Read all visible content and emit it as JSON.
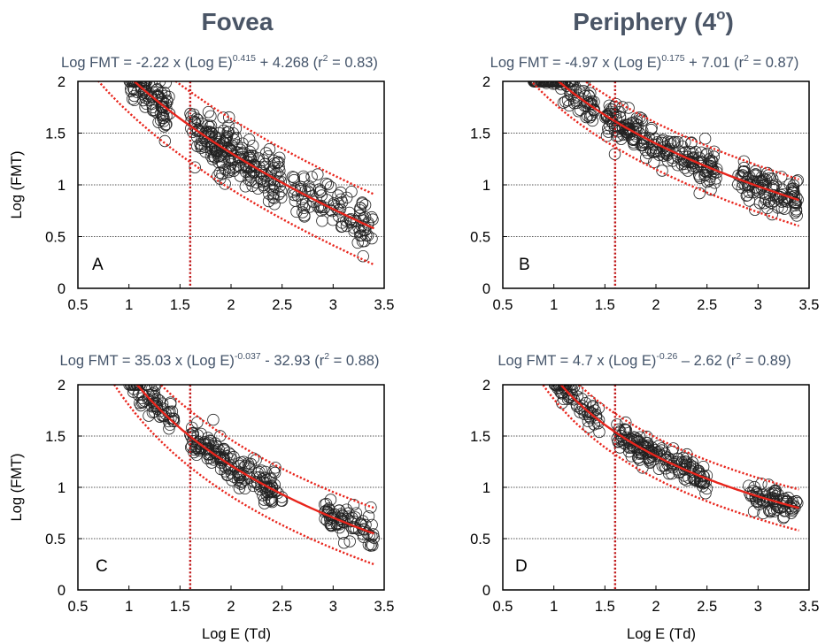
{
  "figure": {
    "column_titles": [
      "Fovea",
      "Periphery (4",
      "o",
      ")"
    ]
  },
  "chart_data": [
    {
      "panel": "A",
      "type": "scatter",
      "equation": [
        "Log FMT = -2.22 x (Log E)",
        "0.415",
        " + 4.268 (r",
        "2",
        " = 0.83)"
      ],
      "fit": {
        "a": -2.22,
        "b": 0.415,
        "c": 4.268,
        "r2": 0.83
      },
      "band": {
        "upper_offset": 0.33,
        "lower_offset": -0.35
      },
      "xlabel": "",
      "ylabel": "Log (FMT)",
      "xlim": [
        0.5,
        3.5
      ],
      "ylim": [
        0,
        2
      ],
      "xticks": [
        "0.5",
        "1",
        "1.5",
        "2",
        "2.5",
        "3",
        "3.5"
      ],
      "yticks": [
        "0",
        "0.5",
        "1",
        "1.5",
        "2"
      ],
      "y_gridlines": [
        0.5,
        1,
        1.5,
        2
      ],
      "vline_x": 1.6,
      "points": {
        "x_range": [
          0.8,
          3.4
        ],
        "y_range": [
          0.17,
          2.0
        ],
        "spread": 0.13,
        "clusters": [
          [
            1.0,
            1.4,
            95
          ],
          [
            1.6,
            2.0,
            110
          ],
          [
            2.0,
            2.5,
            110
          ],
          [
            2.6,
            3.4,
            105
          ]
        ]
      }
    },
    {
      "panel": "B",
      "type": "scatter",
      "equation": [
        "Log FMT = -4.97 x (Log E)",
        "0.175",
        " + 7.01 (r",
        "2",
        " = 0.87)"
      ],
      "fit": {
        "a": -4.97,
        "b": 0.175,
        "c": 7.01,
        "r2": 0.87
      },
      "band": {
        "upper_offset": 0.2,
        "lower_offset": -0.25
      },
      "xlabel": "",
      "ylabel": "",
      "xlim": [
        0.5,
        3.5
      ],
      "ylim": [
        0,
        2
      ],
      "xticks": [
        "0.5",
        "1",
        "1.5",
        "2",
        "2.5",
        "3",
        "3.5"
      ],
      "yticks": [
        "0",
        "0.5",
        "1",
        "1.5",
        "2"
      ],
      "y_gridlines": [
        0.5,
        1,
        1.5,
        2
      ],
      "vline_x": 1.6,
      "points": {
        "x_range": [
          0.8,
          3.4
        ],
        "y_range": [
          0.6,
          2.0
        ],
        "spread": 0.09,
        "clusters": [
          [
            0.8,
            1.4,
            110
          ],
          [
            1.5,
            2.1,
            120
          ],
          [
            2.1,
            2.6,
            90
          ],
          [
            2.8,
            3.4,
            115
          ]
        ]
      }
    },
    {
      "panel": "C",
      "type": "scatter",
      "equation": [
        "Log FMT = 35.03 x (Log E)",
        "-0.037",
        " - 32.93 (r",
        "2",
        " = 0.88)"
      ],
      "fit": {
        "a": 35.03,
        "b": -0.037,
        "c": -32.93,
        "r2": 0.88
      },
      "band": {
        "upper_offset": 0.25,
        "lower_offset": -0.3
      },
      "xlabel": "Log E (Td)",
      "ylabel": "Log (FMT)",
      "xlim": [
        0.5,
        3.5
      ],
      "ylim": [
        0,
        2
      ],
      "xticks": [
        "0.5",
        "1",
        "1.5",
        "2",
        "2.5",
        "3",
        "3.5"
      ],
      "yticks": [
        "0",
        "0.5",
        "1",
        "1.5",
        "2"
      ],
      "y_gridlines": [
        0.5,
        1,
        1.5,
        2
      ],
      "vline_x": 1.6,
      "points": {
        "x_range": [
          1.0,
          3.4
        ],
        "y_range": [
          0.17,
          2.0
        ],
        "spread": 0.09,
        "clusters": [
          [
            1.0,
            1.45,
            75
          ],
          [
            1.6,
            2.0,
            85
          ],
          [
            2.0,
            2.5,
            85
          ],
          [
            2.9,
            3.4,
            80
          ]
        ]
      }
    },
    {
      "panel": "D",
      "type": "scatter",
      "equation": [
        "Log FMT = 4.7 x (Log E)",
        "-0.26",
        " – 2.62 (r",
        "2",
        " = 0.89)"
      ],
      "fit": {
        "a": 4.7,
        "b": -0.26,
        "c": -2.62,
        "r2": 0.89
      },
      "band": {
        "upper_offset": 0.18,
        "lower_offset": -0.22
      },
      "xlabel": "Log E (Td)",
      "ylabel": "",
      "xlim": [
        0.5,
        3.5
      ],
      "ylim": [
        0,
        2
      ],
      "xticks": [
        "0.5",
        "1",
        "1.5",
        "2",
        "2.5",
        "3",
        "3.5"
      ],
      "yticks": [
        "0",
        "0.5",
        "1",
        "1.5",
        "2"
      ],
      "y_gridlines": [
        0.5,
        1,
        1.5,
        2
      ],
      "vline_x": 1.6,
      "points": {
        "x_range": [
          1.0,
          3.4
        ],
        "y_range": [
          0.7,
          2.0
        ],
        "spread": 0.07,
        "clusters": [
          [
            1.0,
            1.45,
            75
          ],
          [
            1.6,
            2.0,
            85
          ],
          [
            2.0,
            2.5,
            85
          ],
          [
            2.9,
            3.4,
            80
          ]
        ]
      }
    }
  ]
}
